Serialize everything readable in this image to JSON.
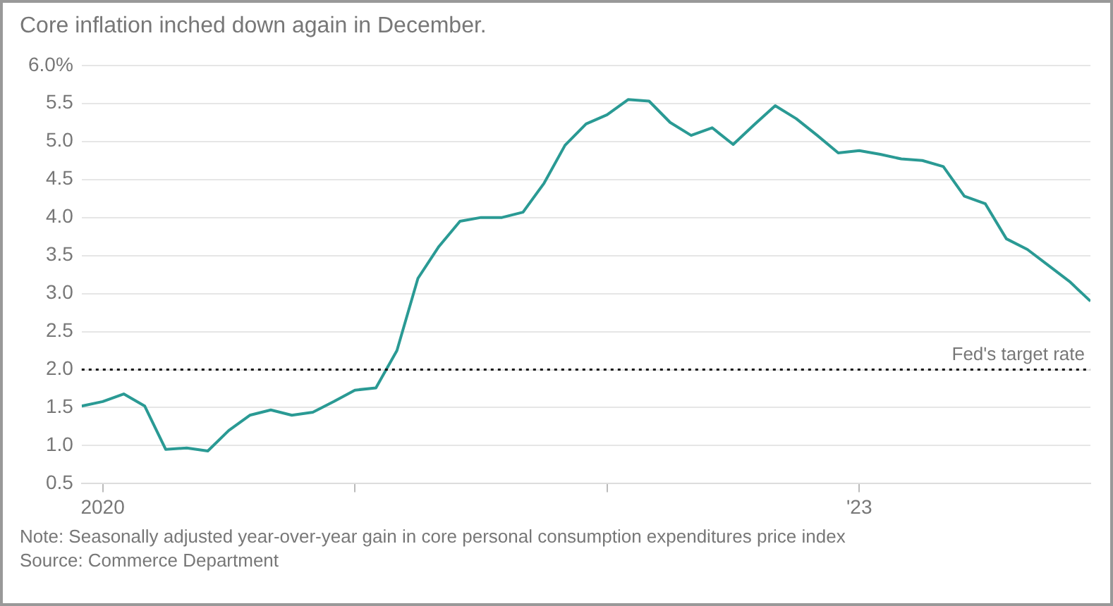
{
  "chart_data": {
    "type": "line",
    "title": "Core inflation inched down again in December.",
    "x": [
      "2019-12",
      "2020-01",
      "2020-02",
      "2020-03",
      "2020-04",
      "2020-05",
      "2020-06",
      "2020-07",
      "2020-08",
      "2020-09",
      "2020-10",
      "2020-11",
      "2020-12",
      "2021-01",
      "2021-02",
      "2021-03",
      "2021-04",
      "2021-05",
      "2021-06",
      "2021-07",
      "2021-08",
      "2021-09",
      "2021-10",
      "2021-11",
      "2021-12",
      "2022-01",
      "2022-02",
      "2022-03",
      "2022-04",
      "2022-05",
      "2022-06",
      "2022-07",
      "2022-08",
      "2022-09",
      "2022-10",
      "2022-11",
      "2022-12",
      "2023-01",
      "2023-02",
      "2023-03",
      "2023-04",
      "2023-05",
      "2023-06",
      "2023-07",
      "2023-08",
      "2023-09",
      "2023-10",
      "2023-11",
      "2023-12"
    ],
    "series": [
      {
        "color": "#2a9a94",
        "values": [
          1.52,
          1.58,
          1.68,
          1.52,
          0.95,
          0.97,
          0.93,
          1.2,
          1.4,
          1.47,
          1.4,
          1.44,
          1.58,
          1.73,
          1.76,
          2.25,
          3.2,
          3.62,
          3.95,
          4.0,
          4.0,
          4.07,
          4.45,
          4.95,
          5.23,
          5.35,
          5.55,
          5.53,
          5.25,
          5.08,
          5.18,
          4.96,
          5.22,
          5.47,
          5.3,
          5.08,
          4.85,
          4.88,
          4.83,
          4.77,
          4.75,
          4.67,
          4.28,
          4.18,
          3.72,
          3.58,
          3.37,
          3.16,
          2.9
        ]
      }
    ],
    "xlim": [
      "2019-12",
      "2023-12"
    ],
    "xticks": [
      {
        "value": "2020-01",
        "label": "2020"
      },
      {
        "value": "2021-01",
        "label": null
      },
      {
        "value": "2022-01",
        "label": null
      },
      {
        "value": "2023-01",
        "label": "'23"
      }
    ],
    "ylim": [
      0.5,
      6.0
    ],
    "yticks": [
      0.5,
      {
        "value": 1,
        "label": "1.0"
      },
      1.5,
      {
        "value": 2,
        "label": "2.0"
      },
      2.5,
      {
        "value": 3,
        "label": "3.0"
      },
      3.5,
      {
        "value": 4,
        "label": "4.0"
      },
      4.5,
      {
        "value": 5,
        "label": "5.0"
      },
      5.5,
      {
        "value": 6,
        "label": "6.0%"
      }
    ],
    "grid": "y",
    "legend": false,
    "marker": "none",
    "line_style": "solid",
    "ref_lines": [
      {
        "axis": "y",
        "value": 2,
        "label": "Fed's target rate",
        "color": "#111111",
        "line_style": "dotted"
      }
    ],
    "annotations": [
      "Note: Seasonally adjusted year-over-year gain in core personal consumption expenditures price index",
      "Source: Commerce Department"
    ]
  }
}
